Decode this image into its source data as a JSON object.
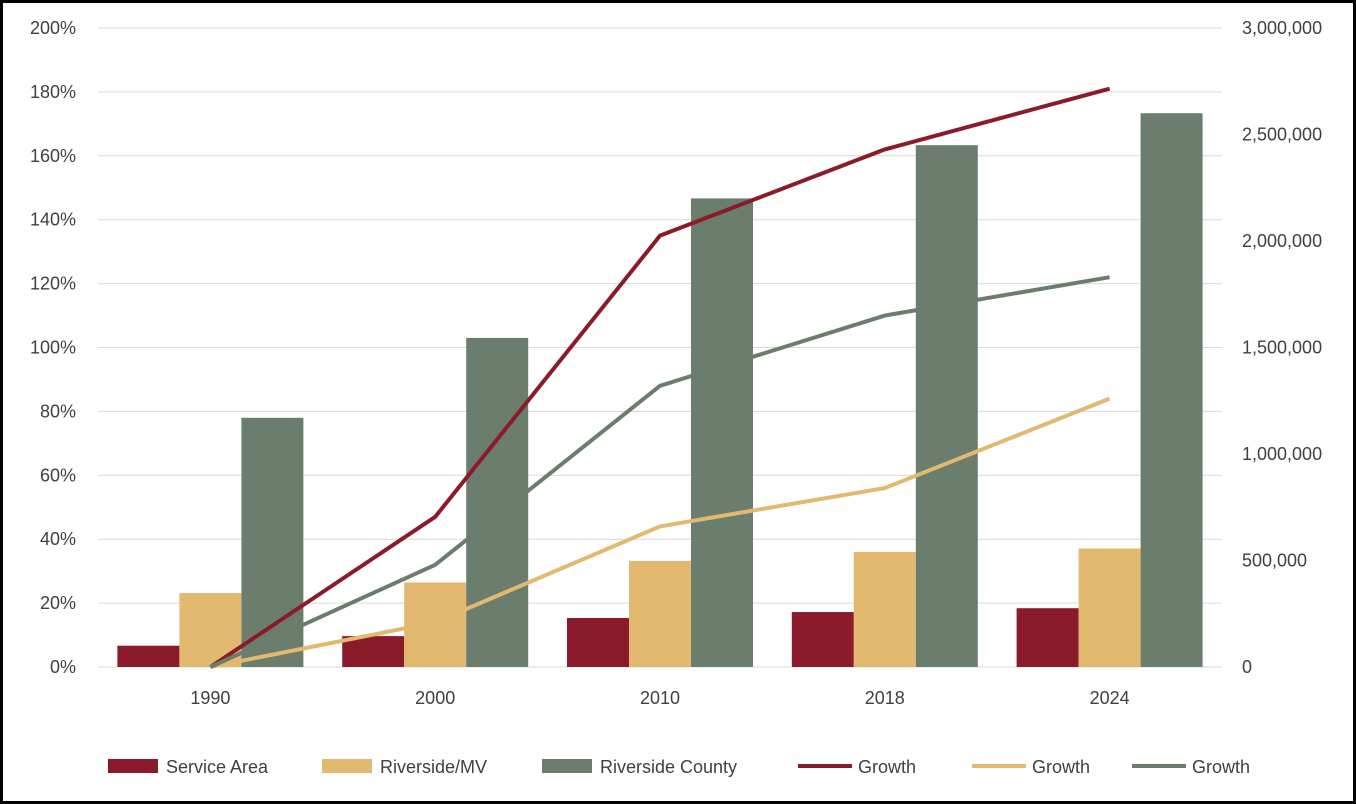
{
  "chart_data": {
    "type": "bar",
    "categories": [
      "1990",
      "2000",
      "2010",
      "2018",
      "2024"
    ],
    "bar_axis": {
      "side": "right",
      "ylim": [
        0,
        3000000
      ],
      "ticks": [
        "0",
        "500,000",
        "1,000,000",
        "1,500,000",
        "2,000,000",
        "2,500,000",
        "3,000,000"
      ],
      "tick_values": [
        0,
        500000,
        1000000,
        1500000,
        2000000,
        2500000,
        3000000
      ]
    },
    "line_axis": {
      "side": "left",
      "ylim": [
        0,
        200
      ],
      "ticks": [
        "0%",
        "20%",
        "40%",
        "60%",
        "80%",
        "100%",
        "120%",
        "140%",
        "160%",
        "180%",
        "200%"
      ],
      "tick_values": [
        0,
        20,
        40,
        60,
        80,
        100,
        120,
        140,
        160,
        180,
        200
      ]
    },
    "series": [
      {
        "name": "Service Area",
        "kind": "bar",
        "color": "#8b1a2a",
        "values": [
          100000,
          145000,
          230000,
          258000,
          276000
        ]
      },
      {
        "name": "Riverside/MV",
        "kind": "bar",
        "color": "#e2b96f",
        "values": [
          347000,
          397000,
          498000,
          540000,
          556000
        ]
      },
      {
        "name": "Riverside County",
        "kind": "bar",
        "color": "#6b7e6e",
        "values": [
          1170000,
          1545000,
          2200000,
          2450000,
          2600000
        ]
      },
      {
        "name": "Growth",
        "kind": "line",
        "color": "#8b1a2a",
        "values": [
          0,
          47,
          135,
          162,
          181
        ]
      },
      {
        "name": "Growth",
        "kind": "line",
        "color": "#e2b96f",
        "values": [
          0,
          14,
          44,
          56,
          84
        ]
      },
      {
        "name": "Growth",
        "kind": "line",
        "color": "#6b7e6e",
        "values": [
          0,
          32,
          88,
          110,
          122
        ]
      }
    ],
    "gridlines": true,
    "legend_position": "bottom"
  }
}
